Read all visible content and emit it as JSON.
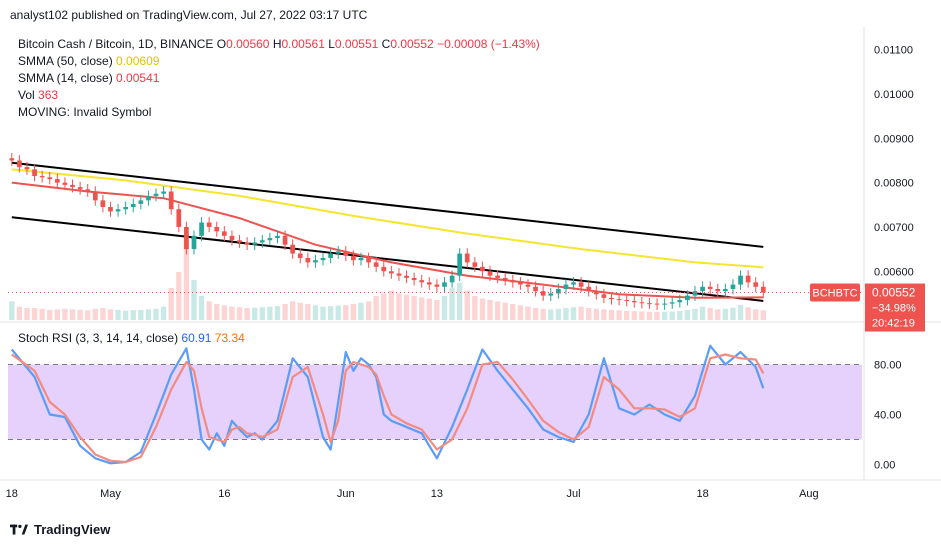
{
  "header": {
    "publisher": "analyst102 published on TradingView.com, Jul 27, 2022 03:17 UTC"
  },
  "legend": {
    "symbol": "Bitcoin Cash / Bitcoin, 1D, BINANCE",
    "o_label": "O",
    "o_val": "0.00560",
    "h_label": "H",
    "h_val": "0.00561",
    "l_label": "L",
    "l_val": "0.00551",
    "c_label": "C",
    "c_val": "0.00552",
    "chg": "−0.00008 (−1.43%)",
    "smma50_label": "SMMA (50, close)",
    "smma50_val": "0.00609",
    "smma14_label": "SMMA (14, close)",
    "smma14_val": "0.00541",
    "vol_label": "Vol",
    "vol_val": "363",
    "moving_label": "MOVING: Invalid Symbol"
  },
  "stoch_legend": {
    "label": "Stoch RSI (3, 3, 14, 14, close)",
    "k_val": "60.91",
    "d_val": "73.34"
  },
  "price_tag": {
    "symbol": "BCHBTC",
    "price": "0.00552",
    "pct": "−34.98%",
    "countdown": "20:42:19"
  },
  "footer": {
    "brand": "TradingView"
  },
  "colors": {
    "up": "#26a69a",
    "down": "#ef5350",
    "smma50": "#f5e52f",
    "smma14": "#ef5350",
    "stoch_k": "#5b9cf6",
    "stoch_d": "#f28b82",
    "band": "#e1c9fb",
    "channel": "#000000"
  },
  "chart_data": [
    {
      "type": "candlestick",
      "title": "Bitcoin Cash / Bitcoin, 1D, BINANCE",
      "ylim": [
        0.0049,
        0.0114
      ],
      "y_ticks": [
        "0.01100",
        "0.01000",
        "0.00900",
        "0.00800",
        "0.00700",
        "0.00600"
      ],
      "y_tick_values": [
        0.011,
        0.01,
        0.009,
        0.008,
        0.007,
        0.006
      ],
      "x_ticks": [
        "18",
        "May",
        "16",
        "Jun",
        "13",
        "Jul",
        "18",
        "Aug"
      ],
      "x_tick_days": [
        0,
        13,
        28,
        44,
        56,
        74,
        91,
        105
      ],
      "day_range": [
        -0.5,
        112
      ],
      "candles_close": [
        0.0085,
        0.00835,
        0.0083,
        0.00815,
        0.00812,
        0.00808,
        0.008,
        0.00795,
        0.0079,
        0.00785,
        0.0078,
        0.0076,
        0.00745,
        0.00735,
        0.0074,
        0.00745,
        0.00752,
        0.0076,
        0.0077,
        0.00775,
        0.0078,
        0.0074,
        0.007,
        0.0065,
        0.0068,
        0.0071,
        0.007,
        0.0069,
        0.0068,
        0.0067,
        0.00665,
        0.0066,
        0.00665,
        0.0067,
        0.00675,
        0.0068,
        0.0066,
        0.0064,
        0.0063,
        0.0062,
        0.00625,
        0.0063,
        0.0064,
        0.00645,
        0.00635,
        0.00625,
        0.0063,
        0.0062,
        0.0061,
        0.006,
        0.00595,
        0.0059,
        0.00585,
        0.0058,
        0.00575,
        0.0057,
        0.00565,
        0.00575,
        0.0059,
        0.0064,
        0.0062,
        0.0061,
        0.006,
        0.0059,
        0.00585,
        0.0058,
        0.00575,
        0.0057,
        0.00565,
        0.00555,
        0.00545,
        0.0055,
        0.0056,
        0.0057,
        0.00575,
        0.00565,
        0.00555,
        0.00548,
        0.0054,
        0.00537,
        0.00535,
        0.00533,
        0.0053,
        0.00528,
        0.00527,
        0.00525,
        0.00527,
        0.0053,
        0.00535,
        0.00545,
        0.00555,
        0.00565,
        0.0056,
        0.00555,
        0.0056,
        0.0057,
        0.0059,
        0.00575,
        0.00565,
        0.00552
      ],
      "series": [
        {
          "name": "SMMA (50, close)",
          "x": [
            0,
            15,
            30,
            45,
            60,
            75,
            90,
            99
          ],
          "values": [
            0.0083,
            0.00805,
            0.0077,
            0.00725,
            0.00685,
            0.0065,
            0.0062,
            0.00609
          ]
        },
        {
          "name": "SMMA (14, close)",
          "x": [
            0,
            10,
            20,
            30,
            40,
            50,
            60,
            70,
            80,
            90,
            99
          ],
          "values": [
            0.008,
            0.0078,
            0.00765,
            0.0072,
            0.0066,
            0.0062,
            0.0059,
            0.0057,
            0.00548,
            0.0054,
            0.00541
          ]
        }
      ],
      "channel_upper": {
        "x": [
          0,
          99
        ],
        "y": [
          0.00845,
          0.00655
        ]
      },
      "channel_lower": {
        "x": [
          0,
          99
        ],
        "y": [
          0.00722,
          0.00533
        ]
      },
      "volume_max": 3000,
      "volume": [
        700,
        500,
        450,
        450,
        420,
        380,
        400,
        420,
        400,
        380,
        360,
        420,
        450,
        400,
        380,
        350,
        370,
        380,
        400,
        420,
        500,
        1200,
        1800,
        3000,
        1500,
        900,
        700,
        600,
        550,
        500,
        480,
        450,
        460,
        480,
        500,
        520,
        600,
        700,
        650,
        600,
        550,
        500,
        520,
        540,
        560,
        600,
        650,
        700,
        900,
        1000,
        1100,
        1000,
        950,
        900,
        850,
        800,
        750,
        900,
        1200,
        1400,
        1100,
        900,
        800,
        750,
        700,
        650,
        600,
        550,
        500,
        450,
        420,
        400,
        420,
        450,
        480,
        500,
        450,
        420,
        400,
        380,
        360,
        340,
        330,
        320,
        310,
        300,
        310,
        320,
        340,
        380,
        420,
        500,
        450,
        400,
        420,
        460,
        560,
        480,
        400,
        363
      ]
    },
    {
      "type": "line",
      "title": "Stoch RSI (3, 3, 14, 14, close)",
      "ylim": [
        -10,
        110
      ],
      "y_ticks": [
        "80.00",
        "40.00",
        "0.00"
      ],
      "y_tick_values": [
        80,
        40,
        0
      ],
      "band": [
        20,
        80
      ],
      "series": [
        {
          "name": "K",
          "x": [
            0,
            3,
            5,
            7,
            9,
            11,
            13,
            15,
            17,
            19,
            21,
            23,
            24,
            25,
            26,
            27,
            28,
            29,
            30,
            31,
            32,
            33,
            35,
            37,
            39,
            41,
            42,
            43,
            44,
            45,
            46,
            47,
            48,
            49,
            50,
            52,
            54,
            56,
            58,
            60,
            62,
            64,
            66,
            68,
            70,
            72,
            74,
            76,
            78,
            80,
            82,
            84,
            86,
            88,
            90,
            92,
            94,
            96,
            98,
            99
          ],
          "values": [
            92,
            70,
            40,
            38,
            15,
            5,
            1,
            2,
            10,
            40,
            72,
            93,
            60,
            20,
            12,
            25,
            15,
            35,
            28,
            22,
            25,
            20,
            35,
            85,
            70,
            22,
            12,
            50,
            90,
            75,
            85,
            80,
            70,
            40,
            35,
            30,
            25,
            5,
            30,
            60,
            92,
            75,
            60,
            45,
            28,
            22,
            18,
            40,
            85,
            45,
            40,
            48,
            40,
            35,
            55,
            95,
            80,
            90,
            78,
            61
          ]
        },
        {
          "name": "D",
          "x": [
            0,
            3,
            5,
            7,
            9,
            11,
            13,
            15,
            17,
            19,
            21,
            23,
            24,
            25,
            26,
            27,
            28,
            29,
            30,
            31,
            32,
            33,
            35,
            37,
            39,
            41,
            42,
            43,
            44,
            45,
            46,
            47,
            48,
            49,
            50,
            52,
            54,
            56,
            58,
            60,
            62,
            64,
            66,
            68,
            70,
            72,
            74,
            76,
            78,
            80,
            82,
            84,
            86,
            88,
            90,
            92,
            94,
            96,
            98,
            99
          ],
          "values": [
            88,
            75,
            50,
            40,
            22,
            8,
            3,
            2,
            6,
            30,
            60,
            82,
            75,
            45,
            22,
            20,
            18,
            28,
            30,
            25,
            24,
            22,
            28,
            70,
            78,
            40,
            18,
            35,
            75,
            82,
            80,
            78,
            72,
            55,
            40,
            33,
            28,
            12,
            20,
            45,
            80,
            82,
            68,
            52,
            35,
            26,
            20,
            30,
            70,
            60,
            45,
            45,
            44,
            38,
            45,
            85,
            88,
            85,
            84,
            73
          ]
        }
      ]
    }
  ]
}
